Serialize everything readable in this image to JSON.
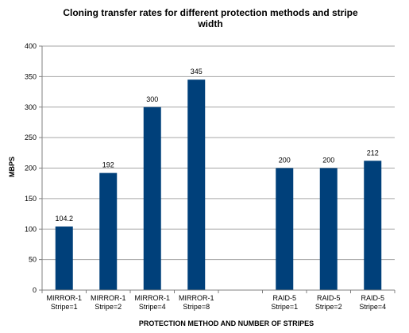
{
  "chart_data": {
    "type": "bar",
    "title_line1": "Cloning transfer rates for different protection methods and stripe",
    "title_line2": "width",
    "xlabel": "PROTECTION METHOD AND NUMBER OF STRIPES",
    "ylabel": "MBPS",
    "ylim": [
      0,
      400
    ],
    "yticks": [
      "0",
      "50",
      "100",
      "150",
      "200",
      "250",
      "300",
      "350",
      "400"
    ],
    "grid": true,
    "legend": "none",
    "bar_color": "#00407A",
    "categories": [
      {
        "line1": "MIRROR-1",
        "line2": "Stripe=1"
      },
      {
        "line1": "MIRROR-1",
        "line2": "Stripe=2"
      },
      {
        "line1": "MIRROR-1",
        "line2": "Stripe=4"
      },
      {
        "line1": "MIRROR-1",
        "line2": "Stripe=8"
      },
      {
        "line1": "",
        "line2": ""
      },
      {
        "line1": "RAID-5",
        "line2": "Stripe=1"
      },
      {
        "line1": "RAID-5",
        "line2": "Stripe=2"
      },
      {
        "line1": "RAID-5",
        "line2": "Stripe=4"
      }
    ],
    "values": [
      104.2,
      192,
      300,
      345,
      null,
      200,
      200,
      212
    ],
    "data_labels": [
      "104.2",
      "192",
      "300",
      "345",
      "",
      "200",
      "200",
      "212"
    ]
  }
}
